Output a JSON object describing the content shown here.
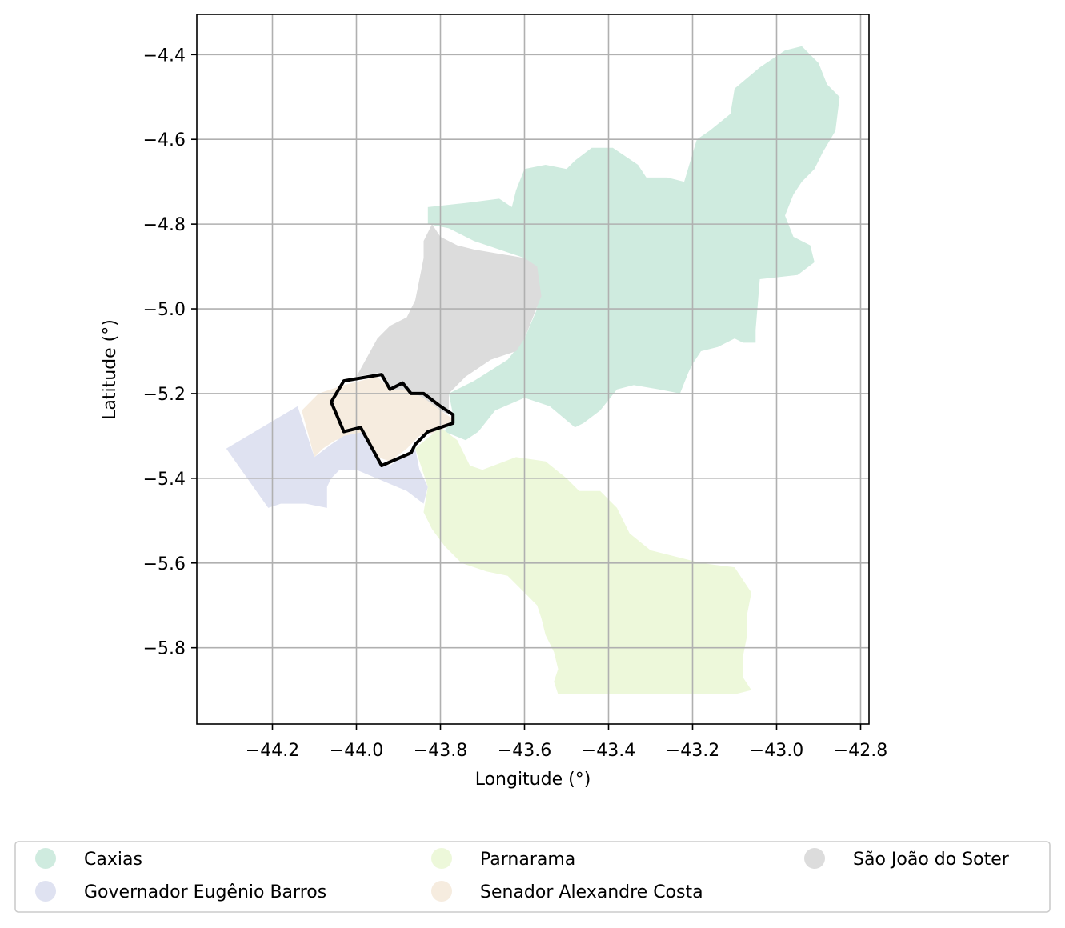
{
  "chart_data": {
    "type": "map",
    "xlabel": "Longitude (°)",
    "ylabel": "Latitude (°)",
    "xlim": [
      -44.38,
      -42.78
    ],
    "ylim": [
      -5.98,
      -4.305
    ],
    "grid": true,
    "x_ticks": [
      {
        "value": -44.2,
        "label": "−44.2"
      },
      {
        "value": -44.0,
        "label": "−44.0"
      },
      {
        "value": -43.8,
        "label": "−43.8"
      },
      {
        "value": -43.6,
        "label": "−43.6"
      },
      {
        "value": -43.4,
        "label": "−43.4"
      },
      {
        "value": -43.2,
        "label": "−43.2"
      },
      {
        "value": -43.0,
        "label": "−43.0"
      },
      {
        "value": -42.8,
        "label": "−42.8"
      }
    ],
    "y_ticks": [
      {
        "value": -4.4,
        "label": "−4.4"
      },
      {
        "value": -4.6,
        "label": "−4.6"
      },
      {
        "value": -4.8,
        "label": "−4.8"
      },
      {
        "value": -5.0,
        "label": "−5.0"
      },
      {
        "value": -5.2,
        "label": "−5.2"
      },
      {
        "value": -5.4,
        "label": "−5.4"
      },
      {
        "value": -5.6,
        "label": "−5.6"
      },
      {
        "value": -5.8,
        "label": "−5.8"
      }
    ],
    "legend": {
      "placement": "below",
      "columns": 3,
      "entries": [
        {
          "name": "Caxias",
          "color": "#cfebdf"
        },
        {
          "name": "Governador Eugênio Barros",
          "color": "#dfe2f1"
        },
        {
          "name": "Parnarama",
          "color": "#edf8da"
        },
        {
          "name": "Senador Alexandre Costa",
          "color": "#f6ecdf"
        },
        {
          "name": "São João do Soter",
          "color": "#dcdcdc"
        }
      ]
    },
    "regions": [
      {
        "name": "Caxias",
        "color": "#cfebdf",
        "polygon": [
          [
            -43.83,
            -4.76
          ],
          [
            -43.74,
            -4.75
          ],
          [
            -43.66,
            -4.74
          ],
          [
            -43.63,
            -4.76
          ],
          [
            -43.62,
            -4.72
          ],
          [
            -43.6,
            -4.67
          ],
          [
            -43.55,
            -4.66
          ],
          [
            -43.5,
            -4.67
          ],
          [
            -43.48,
            -4.65
          ],
          [
            -43.44,
            -4.62
          ],
          [
            -43.39,
            -4.62
          ],
          [
            -43.33,
            -4.66
          ],
          [
            -43.31,
            -4.69
          ],
          [
            -43.26,
            -4.69
          ],
          [
            -43.22,
            -4.7
          ],
          [
            -43.19,
            -4.6
          ],
          [
            -43.16,
            -4.58
          ],
          [
            -43.11,
            -4.54
          ],
          [
            -43.1,
            -4.48
          ],
          [
            -43.04,
            -4.43
          ],
          [
            -42.98,
            -4.39
          ],
          [
            -42.94,
            -4.38
          ],
          [
            -42.9,
            -4.42
          ],
          [
            -42.88,
            -4.47
          ],
          [
            -42.85,
            -4.5
          ],
          [
            -42.86,
            -4.58
          ],
          [
            -42.89,
            -4.63
          ],
          [
            -42.91,
            -4.67
          ],
          [
            -42.94,
            -4.7
          ],
          [
            -42.96,
            -4.73
          ],
          [
            -42.98,
            -4.78
          ],
          [
            -42.96,
            -4.83
          ],
          [
            -42.92,
            -4.85
          ],
          [
            -42.91,
            -4.89
          ],
          [
            -42.95,
            -4.92
          ],
          [
            -43.04,
            -4.93
          ],
          [
            -43.05,
            -5.05
          ],
          [
            -43.05,
            -5.08
          ],
          [
            -43.08,
            -5.08
          ],
          [
            -43.1,
            -5.07
          ],
          [
            -43.14,
            -5.09
          ],
          [
            -43.18,
            -5.1
          ],
          [
            -43.2,
            -5.13
          ],
          [
            -43.21,
            -5.15
          ],
          [
            -43.23,
            -5.2
          ],
          [
            -43.28,
            -5.19
          ],
          [
            -43.34,
            -5.18
          ],
          [
            -43.38,
            -5.19
          ],
          [
            -43.42,
            -5.24
          ],
          [
            -43.46,
            -5.27
          ],
          [
            -43.48,
            -5.28
          ],
          [
            -43.54,
            -5.23
          ],
          [
            -43.6,
            -5.21
          ],
          [
            -43.67,
            -5.24
          ],
          [
            -43.71,
            -5.29
          ],
          [
            -43.74,
            -5.31
          ],
          [
            -43.79,
            -5.29
          ],
          [
            -43.77,
            -5.25
          ],
          [
            -43.78,
            -5.2
          ],
          [
            -43.72,
            -5.17
          ],
          [
            -43.64,
            -5.12
          ],
          [
            -43.6,
            -5.07
          ],
          [
            -43.57,
            -5.0
          ],
          [
            -43.58,
            -4.92
          ],
          [
            -43.6,
            -4.88
          ],
          [
            -43.66,
            -4.86
          ],
          [
            -43.72,
            -4.84
          ],
          [
            -43.78,
            -4.81
          ],
          [
            -43.83,
            -4.8
          ]
        ]
      },
      {
        "name": "São João do Soter",
        "color": "#dcdcdc",
        "polygon": [
          [
            -43.82,
            -4.8
          ],
          [
            -43.8,
            -4.83
          ],
          [
            -43.76,
            -4.85
          ],
          [
            -43.72,
            -4.86
          ],
          [
            -43.66,
            -4.87
          ],
          [
            -43.6,
            -4.88
          ],
          [
            -43.57,
            -4.9
          ],
          [
            -43.56,
            -4.97
          ],
          [
            -43.58,
            -5.02
          ],
          [
            -43.6,
            -5.07
          ],
          [
            -43.62,
            -5.1
          ],
          [
            -43.68,
            -5.12
          ],
          [
            -43.74,
            -5.16
          ],
          [
            -43.78,
            -5.2
          ],
          [
            -43.78,
            -5.25
          ],
          [
            -43.82,
            -5.23
          ],
          [
            -43.87,
            -5.2
          ],
          [
            -43.92,
            -5.19
          ],
          [
            -43.94,
            -5.15
          ],
          [
            -44.0,
            -5.16
          ],
          [
            -43.95,
            -5.07
          ],
          [
            -43.92,
            -5.04
          ],
          [
            -43.88,
            -5.02
          ],
          [
            -43.86,
            -4.98
          ],
          [
            -43.85,
            -4.93
          ],
          [
            -43.84,
            -4.88
          ],
          [
            -43.84,
            -4.84
          ]
        ]
      },
      {
        "name": "Senador Alexandre Costa",
        "color": "#f6ecdf",
        "polygon": [
          [
            -44.13,
            -5.24
          ],
          [
            -44.09,
            -5.2
          ],
          [
            -44.03,
            -5.18
          ],
          [
            -43.95,
            -5.16
          ],
          [
            -43.92,
            -5.19
          ],
          [
            -43.88,
            -5.19
          ],
          [
            -43.84,
            -5.21
          ],
          [
            -43.8,
            -5.24
          ],
          [
            -43.77,
            -5.26
          ],
          [
            -43.8,
            -5.29
          ],
          [
            -43.85,
            -5.3
          ],
          [
            -43.88,
            -5.33
          ],
          [
            -43.92,
            -5.36
          ],
          [
            -43.95,
            -5.35
          ],
          [
            -44.01,
            -5.3
          ],
          [
            -44.05,
            -5.31
          ],
          [
            -44.08,
            -5.33
          ],
          [
            -44.1,
            -5.35
          ]
        ]
      },
      {
        "name": "Governador Eugênio Barros",
        "color": "#dfe2f1",
        "polygon": [
          [
            -44.31,
            -5.33
          ],
          [
            -44.14,
            -5.23
          ],
          [
            -44.1,
            -5.35
          ],
          [
            -44.06,
            -5.32
          ],
          [
            -44.03,
            -5.3
          ],
          [
            -43.98,
            -5.29
          ],
          [
            -43.95,
            -5.36
          ],
          [
            -43.92,
            -5.37
          ],
          [
            -43.88,
            -5.34
          ],
          [
            -43.86,
            -5.33
          ],
          [
            -43.85,
            -5.38
          ],
          [
            -43.83,
            -5.42
          ],
          [
            -43.84,
            -5.46
          ],
          [
            -43.88,
            -5.43
          ],
          [
            -44.0,
            -5.38
          ],
          [
            -44.04,
            -5.38
          ],
          [
            -44.06,
            -5.4
          ],
          [
            -44.07,
            -5.42
          ],
          [
            -44.07,
            -5.47
          ],
          [
            -44.12,
            -5.46
          ],
          [
            -44.18,
            -5.46
          ],
          [
            -44.21,
            -5.47
          ]
        ]
      },
      {
        "name": "Parnarama",
        "color": "#edf8da",
        "polygon": [
          [
            -43.86,
            -5.33
          ],
          [
            -43.8,
            -5.28
          ],
          [
            -43.76,
            -5.31
          ],
          [
            -43.73,
            -5.37
          ],
          [
            -43.7,
            -5.38
          ],
          [
            -43.62,
            -5.35
          ],
          [
            -43.55,
            -5.36
          ],
          [
            -43.5,
            -5.4
          ],
          [
            -43.47,
            -5.43
          ],
          [
            -43.42,
            -5.43
          ],
          [
            -43.38,
            -5.47
          ],
          [
            -43.35,
            -5.53
          ],
          [
            -43.3,
            -5.57
          ],
          [
            -43.18,
            -5.6
          ],
          [
            -43.1,
            -5.61
          ],
          [
            -43.08,
            -5.64
          ],
          [
            -43.06,
            -5.67
          ],
          [
            -43.07,
            -5.72
          ],
          [
            -43.07,
            -5.77
          ],
          [
            -43.08,
            -5.82
          ],
          [
            -43.08,
            -5.87
          ],
          [
            -43.06,
            -5.9
          ],
          [
            -43.1,
            -5.91
          ],
          [
            -43.2,
            -5.91
          ],
          [
            -43.34,
            -5.91
          ],
          [
            -43.52,
            -5.91
          ],
          [
            -43.53,
            -5.88
          ],
          [
            -43.52,
            -5.85
          ],
          [
            -43.53,
            -5.81
          ],
          [
            -43.55,
            -5.77
          ],
          [
            -43.56,
            -5.73
          ],
          [
            -43.57,
            -5.7
          ],
          [
            -43.6,
            -5.67
          ],
          [
            -43.64,
            -5.63
          ],
          [
            -43.69,
            -5.62
          ],
          [
            -43.75,
            -5.6
          ],
          [
            -43.79,
            -5.56
          ],
          [
            -43.82,
            -5.52
          ],
          [
            -43.84,
            -5.48
          ],
          [
            -43.83,
            -5.42
          ]
        ]
      }
    ],
    "highlight_outline": {
      "color": "#000000",
      "polygon": [
        [
          -44.03,
          -5.17
        ],
        [
          -43.94,
          -5.155
        ],
        [
          -43.92,
          -5.19
        ],
        [
          -43.89,
          -5.175
        ],
        [
          -43.87,
          -5.2
        ],
        [
          -43.84,
          -5.2
        ],
        [
          -43.8,
          -5.23
        ],
        [
          -43.77,
          -5.25
        ],
        [
          -43.77,
          -5.27
        ],
        [
          -43.8,
          -5.28
        ],
        [
          -43.83,
          -5.29
        ],
        [
          -43.86,
          -5.32
        ],
        [
          -43.87,
          -5.34
        ],
        [
          -43.94,
          -5.37
        ],
        [
          -43.99,
          -5.28
        ],
        [
          -44.03,
          -5.29
        ],
        [
          -44.06,
          -5.22
        ]
      ]
    }
  }
}
